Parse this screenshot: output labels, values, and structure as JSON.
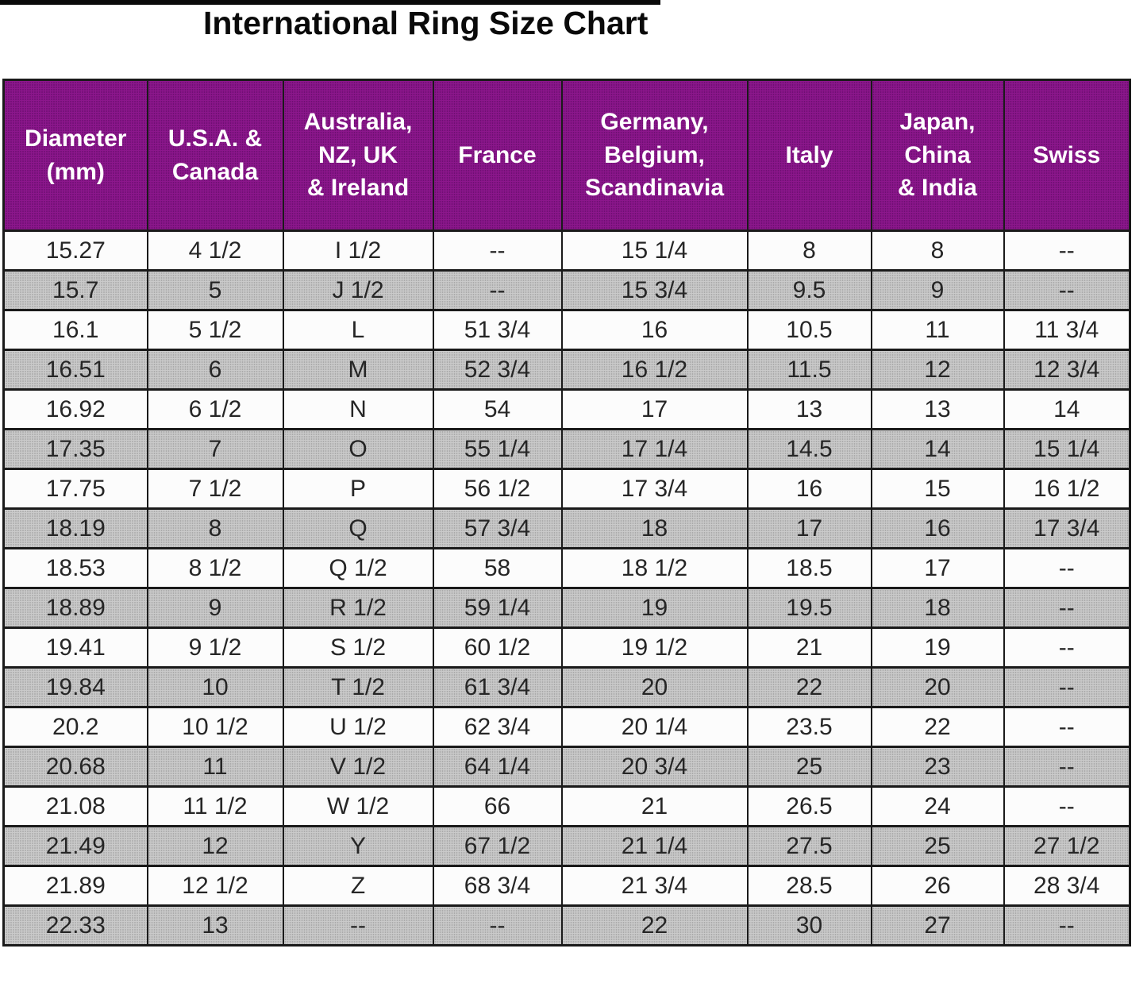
{
  "title": "International Ring Size Chart",
  "colors": {
    "header_bg": "#8C178C",
    "alt_row_bg": "#CACACA",
    "row_bg": "#FCFCFC",
    "border": "#1A1A1A",
    "header_text": "#FFFFFF",
    "title_text": "#0A0A0A"
  },
  "chart_data": {
    "type": "table",
    "title": "International Ring Size Chart",
    "columns": [
      "Diameter\n(mm)",
      "U.S.A. &\nCanada",
      "Australia,\nNZ, UK\n& Ireland",
      "France",
      "Germany,\nBelgium,\nScandinavia",
      "Italy",
      "Japan,\nChina\n& India",
      "Swiss"
    ],
    "column_keys": [
      "diameter-mm",
      "usa-canada",
      "australia-nz-uk-ireland",
      "france",
      "germany-belgium-scandinavia",
      "italy",
      "japan-china-india",
      "swiss"
    ],
    "rows": [
      [
        "15.27",
        "4 1/2",
        "I 1/2",
        "--",
        "15 1/4",
        "8",
        "8",
        "--"
      ],
      [
        "15.7",
        "5",
        "J 1/2",
        "--",
        "15 3/4",
        "9.5",
        "9",
        "--"
      ],
      [
        "16.1",
        "5 1/2",
        "L",
        "51 3/4",
        "16",
        "10.5",
        "11",
        "11 3/4"
      ],
      [
        "16.51",
        "6",
        "M",
        "52 3/4",
        "16 1/2",
        "11.5",
        "12",
        "12 3/4"
      ],
      [
        "16.92",
        "6 1/2",
        "N",
        "54",
        "17",
        "13",
        "13",
        "14"
      ],
      [
        "17.35",
        "7",
        "O",
        "55 1/4",
        "17 1/4",
        "14.5",
        "14",
        "15 1/4"
      ],
      [
        "17.75",
        "7 1/2",
        "P",
        "56 1/2",
        "17 3/4",
        "16",
        "15",
        "16 1/2"
      ],
      [
        "18.19",
        "8",
        "Q",
        "57 3/4",
        "18",
        "17",
        "16",
        "17 3/4"
      ],
      [
        "18.53",
        "8 1/2",
        "Q 1/2",
        "58",
        "18 1/2",
        "18.5",
        "17",
        "--"
      ],
      [
        "18.89",
        "9",
        "R 1/2",
        "59 1/4",
        "19",
        "19.5",
        "18",
        "--"
      ],
      [
        "19.41",
        "9 1/2",
        "S 1/2",
        "60 1/2",
        "19 1/2",
        "21",
        "19",
        "--"
      ],
      [
        "19.84",
        "10",
        "T 1/2",
        "61 3/4",
        "20",
        "22",
        "20",
        "--"
      ],
      [
        "20.2",
        "10 1/2",
        "U 1/2",
        "62 3/4",
        "20 1/4",
        "23.5",
        "22",
        "--"
      ],
      [
        "20.68",
        "11",
        "V 1/2",
        "64 1/4",
        "20 3/4",
        "25",
        "23",
        "--"
      ],
      [
        "21.08",
        "11 1/2",
        "W 1/2",
        "66",
        "21",
        "26.5",
        "24",
        "--"
      ],
      [
        "21.49",
        "12",
        "Y",
        "67 1/2",
        "21 1/4",
        "27.5",
        "25",
        "27 1/2"
      ],
      [
        "21.89",
        "12 1/2",
        "Z",
        "68 3/4",
        "21 3/4",
        "28.5",
        "26",
        "28 3/4"
      ],
      [
        "22.33",
        "13",
        "--",
        "--",
        "22",
        "30",
        "27",
        "--"
      ]
    ],
    "layout_hints": {
      "striped": true,
      "first_row_background": "white",
      "alternate_row_background": "gray",
      "empty_marker": "--",
      "header_style": "purple-bold-white"
    }
  }
}
